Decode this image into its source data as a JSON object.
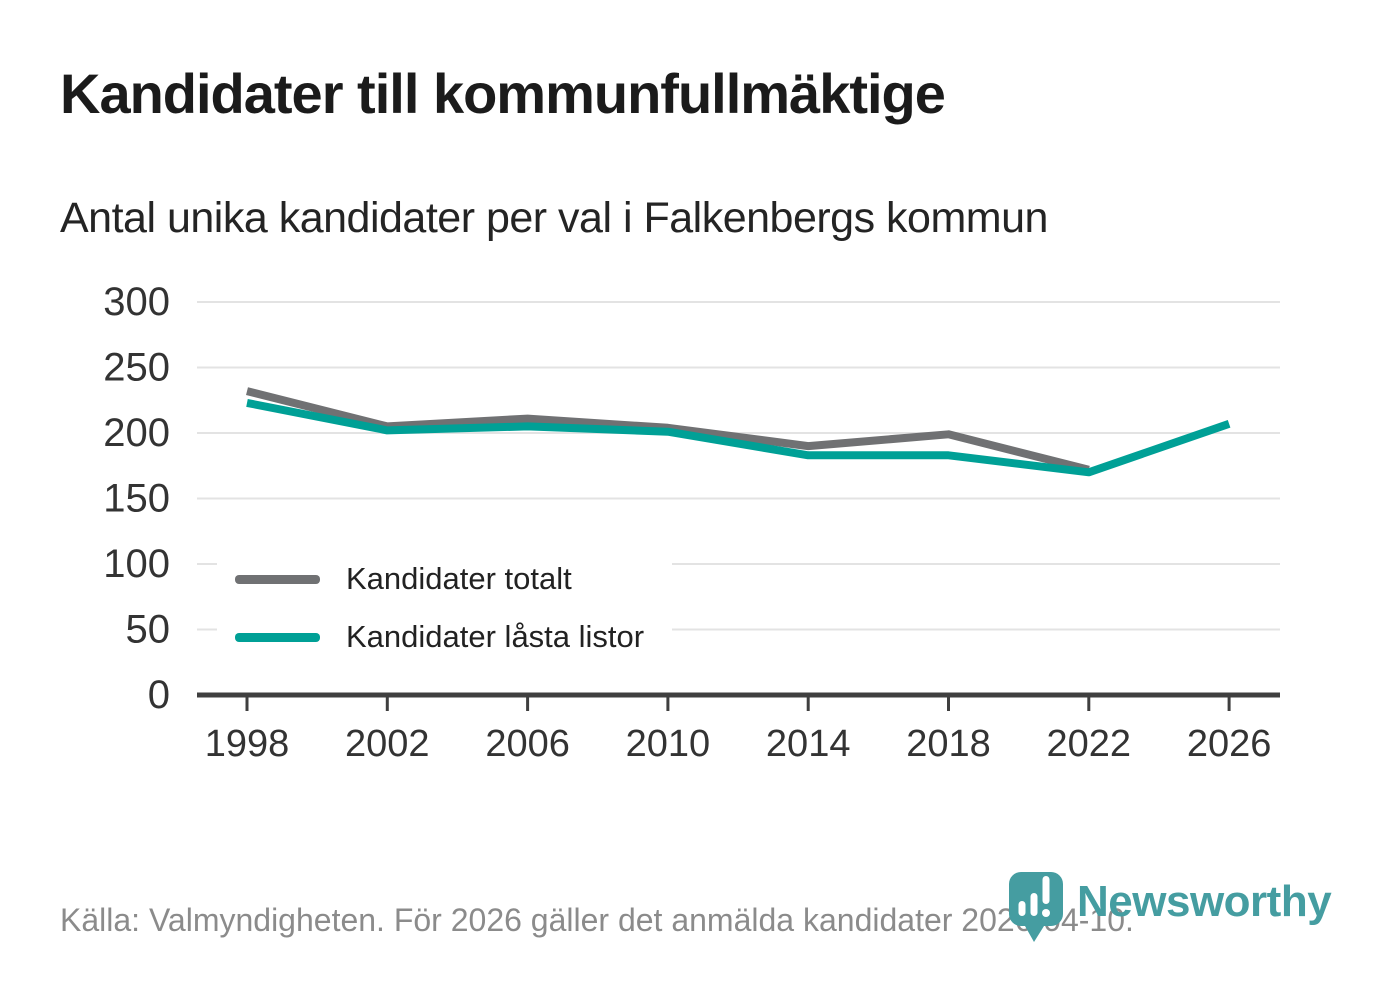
{
  "header": {
    "title": "Kandidater till kommunfullmäktige",
    "subtitle": "Antal unika kandidater per val i Falkenbergs kommun"
  },
  "chart_data": {
    "type": "line",
    "title": "Kandidater till kommunfullmäktige",
    "subtitle": "Antal unika kandidater per val i Falkenbergs kommun",
    "x": [
      1998,
      2002,
      2006,
      2010,
      2014,
      2018,
      2022,
      2026
    ],
    "series": [
      {
        "name": "Kandidater totalt",
        "color": "#707173",
        "years": [
          1998,
          2002,
          2006,
          2010,
          2014,
          2018,
          2022
        ],
        "values": [
          232,
          205,
          211,
          204,
          190,
          199,
          172
        ]
      },
      {
        "name": "Kandidater låsta listor",
        "color": "#00a096",
        "years": [
          1998,
          2002,
          2006,
          2010,
          2014,
          2018,
          2022,
          2026
        ],
        "values": [
          223,
          202,
          205,
          201,
          183,
          183,
          170,
          207
        ]
      }
    ],
    "yticks": [
      0,
      50,
      100,
      150,
      200,
      250,
      300
    ],
    "xticks": [
      "1998",
      "2002",
      "2006",
      "2010",
      "2014",
      "2018",
      "2022",
      "2026"
    ],
    "ylim": [
      0,
      300
    ],
    "xlabel": "",
    "ylabel": "",
    "grid": "horizontal",
    "legend_position": "inside-left"
  },
  "footer": {
    "source": "Källa: Valmyndigheten. För 2026 gäller det anmälda kandidater 2026-04-10.",
    "brand": "Newsworthy",
    "brand_color": "#459da1"
  },
  "style": {
    "axis_color": "#3f3f3f",
    "grid_color": "#e3e3e3",
    "tick_label_color": "#333333"
  }
}
